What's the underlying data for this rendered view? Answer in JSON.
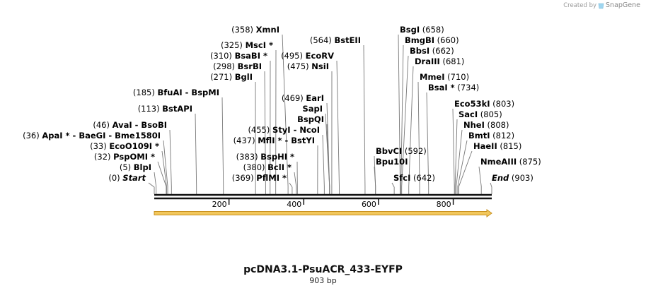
{
  "credit": {
    "created_by": "Created by",
    "brand": "SnapGene",
    "icon": "snapgene-logo-icon"
  },
  "title": "pcDNA3.1-PsuACR_433-EYFP",
  "length_label": "903 bp",
  "sequence_length": 903,
  "colors": {
    "feature_arrow": "#F2C75C",
    "feature_outline": "#C8901E",
    "backbone": "#111111",
    "connector": "#777777"
  },
  "ticks": [
    {
      "pos": 200,
      "label": "200"
    },
    {
      "pos": 400,
      "label": "400"
    },
    {
      "pos": 600,
      "label": "600"
    },
    {
      "pos": 800,
      "label": "800"
    }
  ],
  "feature": {
    "start": 1,
    "end": 903,
    "direction": "forward",
    "name": ""
  },
  "sites": [
    {
      "label": "(0)  Start",
      "name": "Start",
      "pos_text": "(0)",
      "pos": 0,
      "side": "left",
      "italic": true
    },
    {
      "label": "(5)  BlpI",
      "name": "BlpI",
      "pos_text": "(5)",
      "pos": 5,
      "side": "left"
    },
    {
      "label": "(32)  PspOMI *",
      "name": "PspOMI *",
      "pos_text": "(32)",
      "pos": 32,
      "side": "left"
    },
    {
      "label": "(33)  EcoO109I *",
      "name": "EcoO109I *",
      "pos_text": "(33)",
      "pos": 33,
      "side": "left"
    },
    {
      "label": "(36)  ApaI * - BaeGI - Bme1580I",
      "name": "ApaI * - BaeGI - Bme1580I",
      "pos_text": "(36)",
      "pos": 36,
      "side": "left"
    },
    {
      "label": "(46)  AvaI - BsoBI",
      "name": "AvaI - BsoBI",
      "pos_text": "(46)",
      "pos": 46,
      "side": "left"
    },
    {
      "label": "(113)  BstAPI",
      "name": "BstAPI",
      "pos_text": "(113)",
      "pos": 113,
      "side": "left"
    },
    {
      "label": "(185)  BfuAI - BspMI",
      "name": "BfuAI - BspMI",
      "pos_text": "(185)",
      "pos": 185,
      "side": "left"
    },
    {
      "label": "(271)  BglI",
      "name": "BglI",
      "pos_text": "(271)",
      "pos": 271,
      "side": "left"
    },
    {
      "label": "(298)  BsrBI",
      "name": "BsrBI",
      "pos_text": "(298)",
      "pos": 298,
      "side": "left"
    },
    {
      "label": "(310)  BsaBI *",
      "name": "BsaBI *",
      "pos_text": "(310)",
      "pos": 310,
      "side": "left"
    },
    {
      "label": "(325)  MscI *",
      "name": "MscI *",
      "pos_text": "(325)",
      "pos": 325,
      "side": "left"
    },
    {
      "label": "(358)  XmnI",
      "name": "XmnI",
      "pos_text": "(358)",
      "pos": 358,
      "side": "left"
    },
    {
      "label": "(369)  PflMI *",
      "name": "PflMI *",
      "pos_text": "(369)",
      "pos": 369,
      "side": "left"
    },
    {
      "label": "(380)  BclI *",
      "name": "BclI *",
      "pos_text": "(380)",
      "pos": 380,
      "side": "left"
    },
    {
      "label": "(383)  BspHI *",
      "name": "BspHI *",
      "pos_text": "(383)",
      "pos": 383,
      "side": "left"
    },
    {
      "label": "(437)  MflI * - BstYI",
      "name": "MflI * - BstYI",
      "pos_text": "(437)",
      "pos": 437,
      "side": "left"
    },
    {
      "label": "(455)  StyI - NcoI",
      "name": "StyI - NcoI",
      "pos_text": "(455)",
      "pos": 455,
      "side": "left"
    },
    {
      "label": "(469)  EarI",
      "name": "EarI",
      "pos_text": "(469)",
      "pos": 469,
      "side": "left"
    },
    {
      "label": "SapI",
      "name": "SapI",
      "pos_text": "",
      "pos": 469,
      "side": "left"
    },
    {
      "label": "BspQI",
      "name": "BspQI",
      "pos_text": "",
      "pos": 469,
      "side": "left"
    },
    {
      "label": "(475)  NsiI",
      "name": "NsiI",
      "pos_text": "(475)",
      "pos": 475,
      "side": "left"
    },
    {
      "label": "(495)  EcoRV",
      "name": "EcoRV",
      "pos_text": "(495)",
      "pos": 495,
      "side": "left"
    },
    {
      "label": "(564)  BstEII",
      "name": "BstEII",
      "pos_text": "(564)",
      "pos": 564,
      "side": "left"
    },
    {
      "label": "BbvCI  (592)",
      "name": "BbvCI",
      "pos_text": "(592)",
      "pos": 592,
      "side": "right"
    },
    {
      "label": "Bpu10I",
      "name": "Bpu10I",
      "pos_text": "",
      "pos": 592,
      "side": "right"
    },
    {
      "label": "SfcI  (642)",
      "name": "SfcI",
      "pos_text": "(642)",
      "pos": 642,
      "side": "right"
    },
    {
      "label": "BsgI  (658)",
      "name": "BsgI",
      "pos_text": "(658)",
      "pos": 658,
      "side": "right"
    },
    {
      "label": "BmgBI  (660)",
      "name": "BmgBI",
      "pos_text": "(660)",
      "pos": 660,
      "side": "right"
    },
    {
      "label": "BbsI  (662)",
      "name": "BbsI",
      "pos_text": "(662)",
      "pos": 662,
      "side": "right"
    },
    {
      "label": "DraIII  (681)",
      "name": "DraIII",
      "pos_text": "(681)",
      "pos": 681,
      "side": "right"
    },
    {
      "label": "MmeI  (710)",
      "name": "MmeI",
      "pos_text": "(710)",
      "pos": 710,
      "side": "right"
    },
    {
      "label": "BsaI *  (734)",
      "name": "BsaI *",
      "pos_text": "(734)",
      "pos": 734,
      "side": "right"
    },
    {
      "label": "Eco53kI  (803)",
      "name": "Eco53kI",
      "pos_text": "(803)",
      "pos": 803,
      "side": "right"
    },
    {
      "label": "SacI  (805)",
      "name": "SacI",
      "pos_text": "(805)",
      "pos": 805,
      "side": "right"
    },
    {
      "label": "NheI  (808)",
      "name": "NheI",
      "pos_text": "(808)",
      "pos": 808,
      "side": "right"
    },
    {
      "label": "BmtI  (812)",
      "name": "BmtI",
      "pos_text": "(812)",
      "pos": 812,
      "side": "right"
    },
    {
      "label": "HaeII  (815)",
      "name": "HaeII",
      "pos_text": "(815)",
      "pos": 815,
      "side": "right"
    },
    {
      "label": "NmeAIII  (875)",
      "name": "NmeAIII",
      "pos_text": "(875)",
      "pos": 875,
      "side": "right"
    },
    {
      "label": "End  (903)",
      "name": "End",
      "pos_text": "(903)",
      "pos": 903,
      "side": "right",
      "italic": true
    }
  ]
}
